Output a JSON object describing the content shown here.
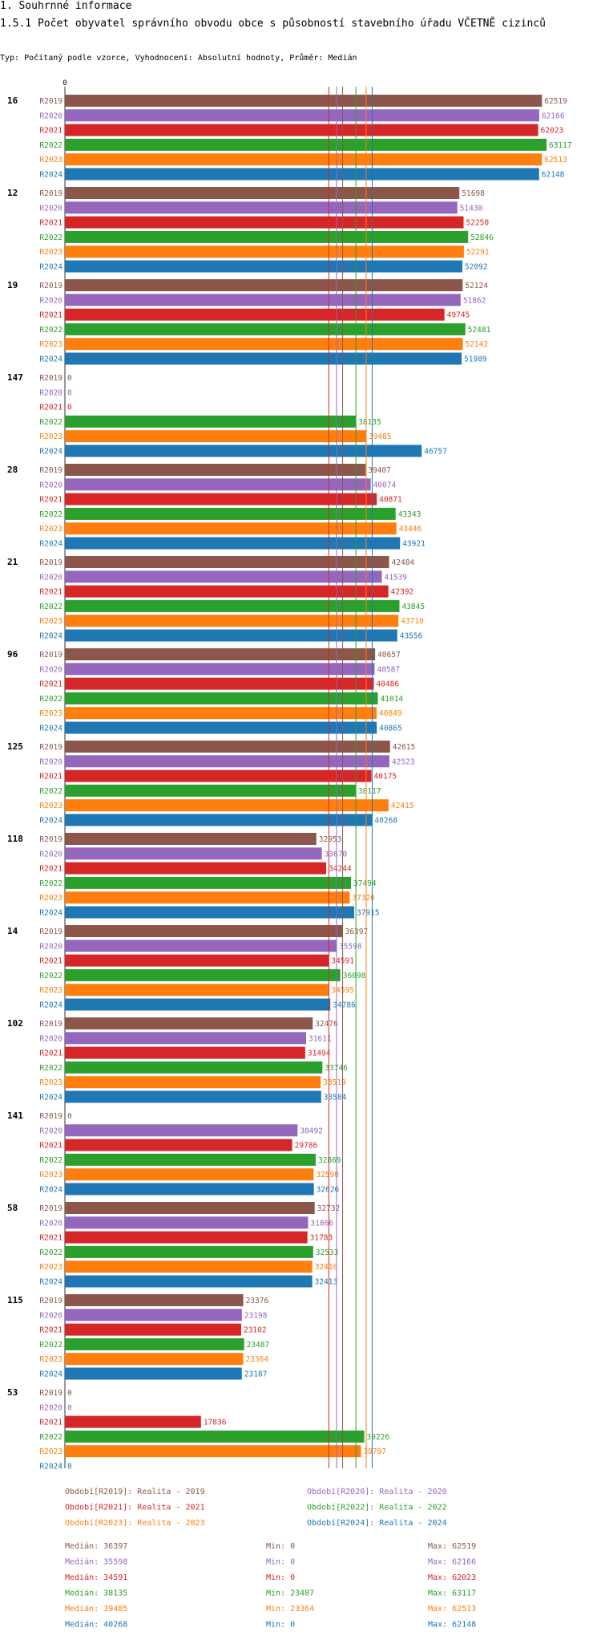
{
  "header": {
    "title1": "1. Souhrnné informace",
    "title2": "1.5.1 Počet obyvatel správního obvodu obce s působností stavebního úřadu VČETNĚ cizinců",
    "subtitle": "Typ: Počítaný podle vzorce, Vyhodnocení: Absolutní hodnoty, Průměr: Medián"
  },
  "colors": {
    "R2019": "#8c564b",
    "R2020": "#9467bd",
    "R2021": "#d62728",
    "R2022": "#2ca02c",
    "R2023": "#ff7f0e",
    "R2024": "#1f77b4"
  },
  "chart_data": {
    "type": "bar",
    "orientation": "horizontal",
    "axis_zero_label": "0",
    "xlim": [
      0,
      63117
    ],
    "periods": [
      "R2019",
      "R2020",
      "R2021",
      "R2022",
      "R2023",
      "R2024"
    ],
    "groups": [
      {
        "label": "16",
        "values": [
          62519,
          62166,
          62023,
          63117,
          62513,
          62148
        ]
      },
      {
        "label": "12",
        "values": [
          51698,
          51430,
          52250,
          52846,
          52291,
          52092
        ]
      },
      {
        "label": "19",
        "values": [
          52124,
          51862,
          49745,
          52481,
          52142,
          51989
        ]
      },
      {
        "label": "147",
        "values": [
          0,
          0,
          0,
          38135,
          39485,
          46757
        ]
      },
      {
        "label": "28",
        "values": [
          39407,
          40074,
          40871,
          43343,
          43446,
          43921
        ]
      },
      {
        "label": "21",
        "values": [
          42484,
          41539,
          42392,
          43845,
          43710,
          43556
        ]
      },
      {
        "label": "96",
        "values": [
          40657,
          40587,
          40486,
          41014,
          40849,
          40865
        ]
      },
      {
        "label": "125",
        "values": [
          42615,
          42523,
          40175,
          38117,
          42415,
          40268
        ]
      },
      {
        "label": "118",
        "values": [
          32953,
          33670,
          34244,
          37494,
          37326,
          37915
        ]
      },
      {
        "label": "14",
        "values": [
          36397,
          35598,
          34591,
          36098,
          34595,
          34786
        ]
      },
      {
        "label": "102",
        "values": [
          32476,
          31611,
          31494,
          33746,
          33519,
          33584
        ]
      },
      {
        "label": "141",
        "values": [
          0,
          30492,
          29786,
          32869,
          32598,
          32626
        ]
      },
      {
        "label": "58",
        "values": [
          32732,
          31866,
          31783,
          32533,
          32410,
          32413
        ]
      },
      {
        "label": "115",
        "values": [
          23376,
          23198,
          23102,
          23487,
          23364,
          23187
        ]
      },
      {
        "label": "53",
        "values": [
          0,
          0,
          17836,
          39226,
          38797,
          0
        ]
      }
    ],
    "medians": [
      36397,
      35598,
      34591,
      38135,
      39485,
      40268
    ],
    "legend": [
      {
        "key": "R2019",
        "text": "Období[R2019]: Realita - 2019"
      },
      {
        "key": "R2020",
        "text": "Období[R2020]: Realita - 2020"
      },
      {
        "key": "R2021",
        "text": "Období[R2021]: Realita - 2021"
      },
      {
        "key": "R2022",
        "text": "Období[R2022]: Realita - 2022"
      },
      {
        "key": "R2023",
        "text": "Období[R2023]: Realita - 2023"
      },
      {
        "key": "R2024",
        "text": "Období[R2024]: Realita - 2024"
      }
    ],
    "stats": [
      {
        "key": "R2019",
        "median": "Medián: 36397",
        "min": "Min: 0",
        "max": "Max: 62519"
      },
      {
        "key": "R2020",
        "median": "Medián: 35598",
        "min": "Min: 0",
        "max": "Max: 62166"
      },
      {
        "key": "R2021",
        "median": "Medián: 34591",
        "min": "Min: 0",
        "max": "Max: 62023"
      },
      {
        "key": "R2022",
        "median": "Medián: 38135",
        "min": "Min: 23487",
        "max": "Max: 63117"
      },
      {
        "key": "R2023",
        "median": "Medián: 39485",
        "min": "Min: 23364",
        "max": "Max: 62513"
      },
      {
        "key": "R2024",
        "median": "Medián: 40268",
        "min": "Min: 0",
        "max": "Max: 62148"
      }
    ]
  }
}
